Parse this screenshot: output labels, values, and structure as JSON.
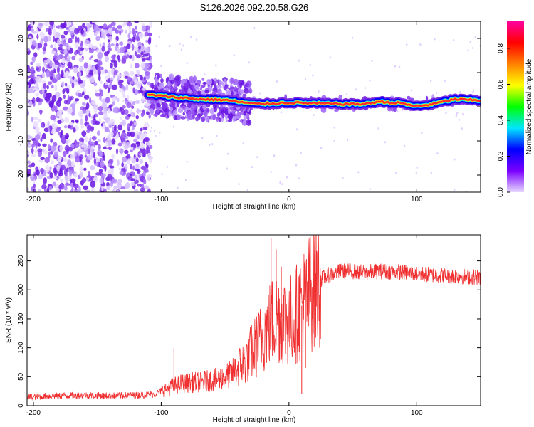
{
  "title": "S126.2026.092.20.58.G26",
  "colors": {
    "background": "#ffffff",
    "snr_line": "#f03030",
    "spectrogram_scatter": "#7a2be0",
    "ridge_core": "#ff2a2a"
  },
  "chart_data": [
    {
      "type": "heatmap",
      "name": "spectrogram",
      "xlabel": "Height of straight line (km)",
      "ylabel": "Frequency (Hz)",
      "xlim": [
        -205,
        150
      ],
      "ylim": [
        -25,
        25
      ],
      "xticks": [
        -200,
        -100,
        0,
        100
      ],
      "yticks": [
        -20,
        -10,
        0,
        10,
        20
      ],
      "grid": false,
      "ridge": {
        "x": [
          -110,
          -90,
          -70,
          -50,
          -35,
          -25,
          -10,
          0,
          20,
          40,
          60,
          70,
          80,
          90,
          95,
          100,
          110,
          120,
          130,
          140,
          150
        ],
        "y": [
          3.5,
          2.8,
          2.2,
          2.0,
          1.2,
          0.8,
          1.0,
          1.2,
          1.0,
          0.8,
          0.8,
          1.5,
          1.2,
          1.0,
          0.3,
          0.2,
          0.6,
          1.4,
          2.2,
          2.0,
          1.8
        ]
      },
      "noise_regions": [
        {
          "x_range": [
            -205,
            -108
          ],
          "y_range": [
            -25,
            25
          ],
          "density": "high"
        },
        {
          "x_range": [
            -108,
            -30
          ],
          "y_range": [
            -7,
            8
          ],
          "density": "medium"
        },
        {
          "x_range": [
            -30,
            150
          ],
          "y_range": [
            -1,
            3
          ],
          "density": "low"
        }
      ],
      "colorbar": {
        "label": "Normalized spectral amplitude",
        "range": [
          0,
          0.95
        ],
        "ticks": [
          "0.0",
          "0.2",
          "0.4",
          "0.6",
          "0.8"
        ],
        "tick_values": [
          0.0,
          0.2,
          0.4,
          0.6,
          0.8
        ],
        "colormap": [
          "#e6d8ff",
          "#7a00ff",
          "#0000ff",
          "#00e6ff",
          "#00ff00",
          "#ffff00",
          "#ff8000",
          "#ff0000",
          "#ff00a0"
        ]
      }
    },
    {
      "type": "line",
      "name": "snr",
      "xlabel": "Height of straight line (km)",
      "ylabel": "SNR (10 * v/v)",
      "xlim": [
        -205,
        150
      ],
      "ylim": [
        0,
        295
      ],
      "xticks": [
        -200,
        -100,
        0,
        100
      ],
      "yticks": [
        0,
        50,
        100,
        150,
        200,
        250
      ],
      "grid": false,
      "series": [
        {
          "name": "SNR",
          "x": [
            -205,
            -180,
            -160,
            -140,
            -120,
            -105,
            -95,
            -85,
            -75,
            -65,
            -55,
            -45,
            -35,
            -25,
            -18,
            -12,
            -8,
            -4,
            0,
            4,
            8,
            12,
            16,
            20,
            25,
            30,
            40,
            50,
            60,
            70,
            80,
            90,
            100,
            110,
            120,
            130,
            140,
            150
          ],
          "y": [
            15,
            17,
            18,
            17,
            18,
            20,
            30,
            38,
            40,
            42,
            46,
            55,
            75,
            105,
            130,
            150,
            155,
            150,
            145,
            155,
            165,
            180,
            195,
            210,
            218,
            225,
            232,
            232,
            230,
            232,
            232,
            230,
            228,
            226,
            225,
            224,
            223,
            222
          ]
        }
      ],
      "spikes": [
        {
          "x": -90,
          "y": 100
        },
        {
          "x": -14,
          "y": 290
        },
        {
          "x": -10,
          "y": 270
        },
        {
          "x": -6,
          "y": 240
        },
        {
          "x": 10,
          "y": 20
        },
        {
          "x": 13,
          "y": 65
        }
      ]
    }
  ]
}
